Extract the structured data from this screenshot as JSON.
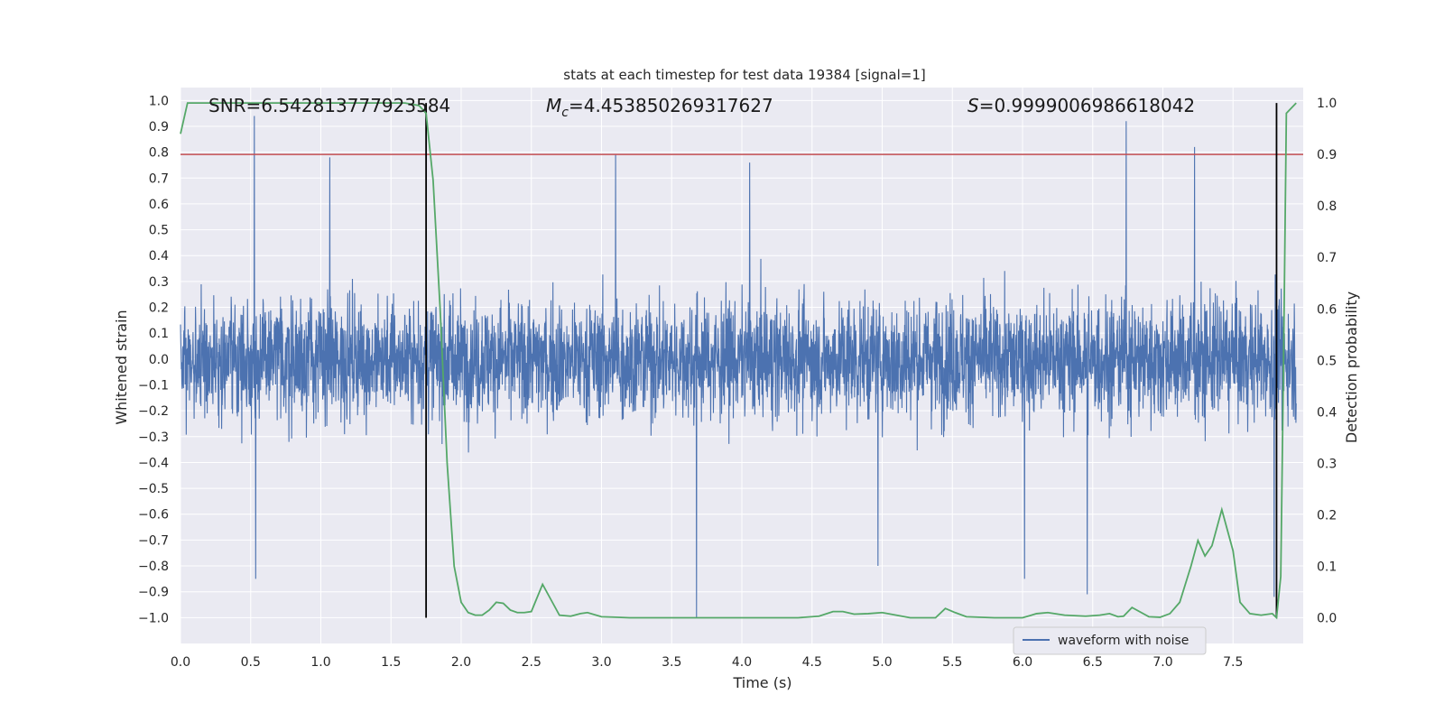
{
  "chart_data": {
    "type": "line",
    "title": "stats at each timestep for test data 19384 [signal=1]",
    "xlabel": "Time (s)",
    "ylabel_left": "Whitened strain",
    "ylabel_right": "Detection probability",
    "xlim": [
      0.0,
      8.0
    ],
    "ylim_left": [
      -1.1,
      1.05
    ],
    "ylim_right": [
      -0.05,
      1.03
    ],
    "xticks": [
      0.0,
      0.5,
      1.0,
      1.5,
      2.0,
      2.5,
      3.0,
      3.5,
      4.0,
      4.5,
      5.0,
      5.5,
      6.0,
      6.5,
      7.0,
      7.5
    ],
    "xtick_labels": [
      "0.0",
      "0.5",
      "1.0",
      "1.5",
      "2.0",
      "2.5",
      "3.0",
      "3.5",
      "4.0",
      "4.5",
      "5.0",
      "5.5",
      "6.0",
      "6.5",
      "7.0",
      "7.5"
    ],
    "yticks_left": [
      1.0,
      0.9,
      0.8,
      0.7,
      0.6,
      0.5,
      0.4,
      0.3,
      0.2,
      0.1,
      0.0,
      -0.1,
      -0.2,
      -0.3,
      -0.4,
      -0.5,
      -0.6,
      -0.7,
      -0.8,
      -0.9,
      -1.0
    ],
    "ytick_labels_left": [
      "1.0",
      "0.9",
      "0.8",
      "0.7",
      "0.6",
      "0.5",
      "0.4",
      "0.3",
      "0.2",
      "0.1",
      "0.0",
      "−0.1",
      "−0.2",
      "−0.3",
      "−0.4",
      "−0.5",
      "−0.6",
      "−0.7",
      "−0.8",
      "−0.9",
      "−1.0"
    ],
    "yticks_right": [
      1.0,
      0.9,
      0.8,
      0.7,
      0.6,
      0.5,
      0.4,
      0.3,
      0.2,
      0.1,
      0.0
    ],
    "ytick_labels_right": [
      "1.0",
      "0.9",
      "0.8",
      "0.7",
      "0.6",
      "0.5",
      "0.4",
      "0.3",
      "0.2",
      "0.1",
      "0.0"
    ],
    "annotations": {
      "snr": "SNR=6.542813777923584",
      "mc_symbol": "M",
      "mc_sub": "c",
      "mc_value": "=4.453850269317627",
      "s_symbol": "S",
      "s_value": "=0.9999006986618042"
    },
    "legend": {
      "label": "waveform with noise",
      "location": "lower-right"
    },
    "threshold_line": {
      "value": 0.9,
      "axis": "right",
      "color": "#c44e52"
    },
    "vertical_lines": [
      1.75,
      7.81
    ],
    "strain_series": {
      "name": "waveform with noise",
      "color": "#4c72b0",
      "typical_upper": 0.38,
      "typical_lower": -0.4,
      "n_samples": 4096,
      "notable_spikes": [
        {
          "t": 0.53,
          "v": 0.94
        },
        {
          "t": 1.07,
          "v": 0.78
        },
        {
          "t": 3.12,
          "v": 0.79
        },
        {
          "t": 4.08,
          "v": 0.76
        },
        {
          "t": 6.78,
          "v": 0.92
        },
        {
          "t": 7.27,
          "v": 0.82
        },
        {
          "t": 3.7,
          "v": -1.0
        },
        {
          "t": 0.54,
          "v": -0.85
        },
        {
          "t": 6.5,
          "v": -0.91
        },
        {
          "t": 6.05,
          "v": -0.85
        },
        {
          "t": 5.0,
          "v": -0.8
        },
        {
          "t": 7.84,
          "v": -0.92
        }
      ]
    },
    "probability_series": {
      "name": "Detection probability",
      "color": "#55a868",
      "x": [
        0.0,
        0.05,
        0.1,
        0.2,
        0.4,
        0.6,
        0.8,
        1.0,
        1.2,
        1.4,
        1.6,
        1.7,
        1.75,
        1.8,
        1.85,
        1.9,
        1.95,
        2.0,
        2.05,
        2.1,
        2.15,
        2.2,
        2.25,
        2.3,
        2.35,
        2.4,
        2.45,
        2.5,
        2.58,
        2.65,
        2.7,
        2.78,
        2.85,
        2.9,
        3.0,
        3.1,
        3.2,
        3.4,
        3.6,
        3.8,
        4.0,
        4.2,
        4.4,
        4.55,
        4.65,
        4.72,
        4.8,
        4.9,
        5.0,
        5.2,
        5.38,
        5.45,
        5.52,
        5.6,
        5.8,
        6.0,
        6.1,
        6.18,
        6.3,
        6.45,
        6.55,
        6.62,
        6.68,
        6.72,
        6.78,
        6.9,
        6.98,
        7.05,
        7.12,
        7.2,
        7.25,
        7.3,
        7.35,
        7.42,
        7.5,
        7.55,
        7.62,
        7.7,
        7.78,
        7.81,
        7.84,
        7.86,
        7.88,
        7.95
      ],
      "y": [
        0.94,
        1.0,
        1.0,
        1.0,
        1.0,
        1.0,
        1.0,
        1.0,
        1.0,
        1.0,
        1.0,
        0.995,
        0.98,
        0.85,
        0.6,
        0.3,
        0.1,
        0.03,
        0.01,
        0.005,
        0.005,
        0.015,
        0.03,
        0.028,
        0.015,
        0.01,
        0.01,
        0.012,
        0.065,
        0.03,
        0.005,
        0.003,
        0.008,
        0.01,
        0.002,
        0.001,
        0.0,
        0.0,
        0.0,
        0.0,
        0.0,
        0.0,
        0.0,
        0.003,
        0.012,
        0.012,
        0.007,
        0.008,
        0.01,
        0.0,
        0.0,
        0.018,
        0.01,
        0.002,
        0.0,
        0.0,
        0.008,
        0.01,
        0.005,
        0.003,
        0.005,
        0.008,
        0.002,
        0.003,
        0.02,
        0.002,
        0.001,
        0.008,
        0.03,
        0.1,
        0.15,
        0.12,
        0.14,
        0.21,
        0.13,
        0.03,
        0.008,
        0.005,
        0.008,
        0.0,
        0.08,
        0.5,
        0.98,
        1.0
      ]
    }
  }
}
